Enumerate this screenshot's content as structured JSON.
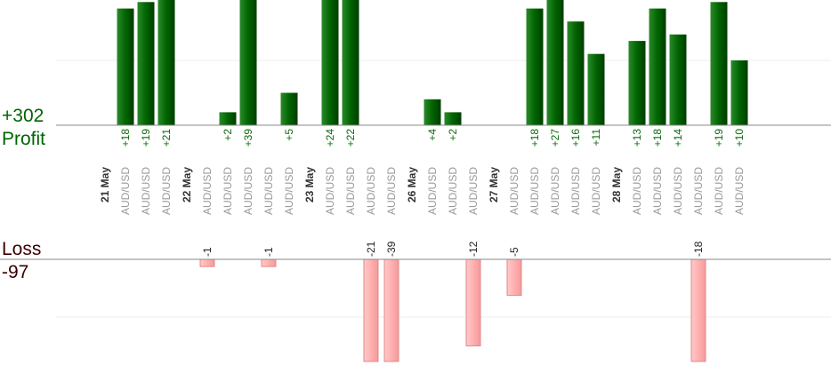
{
  "chart_data": {
    "type": "bar",
    "totals": {
      "profit_value": "+302",
      "profit_label": "Profit",
      "loss_label": "Loss",
      "loss_value": "-97"
    },
    "colors": {
      "profit_bar": "#006400",
      "loss_bar": "#ffb6b6",
      "axis": "#888888"
    },
    "categories": [
      "21 May",
      "AUD/USD",
      "AUD/USD",
      "AUD/USD",
      "22 May",
      "AUD/USD",
      "AUD/USD",
      "AUD/USD",
      "AUD/USD",
      "AUD/USD",
      "23 May",
      "AUD/USD",
      "AUD/USD",
      "AUD/USD",
      "AUD/USD",
      "26 May",
      "AUD/USD",
      "AUD/USD",
      "AUD/USD",
      "27 May",
      "AUD/USD",
      "AUD/USD",
      "AUD/USD",
      "AUD/USD",
      "AUD/USD",
      "28 May",
      "AUD/USD",
      "AUD/USD",
      "AUD/USD",
      "AUD/USD",
      "AUD/USD",
      "AUD/USD"
    ],
    "is_day_header": [
      true,
      false,
      false,
      false,
      true,
      false,
      false,
      false,
      false,
      false,
      true,
      false,
      false,
      false,
      false,
      true,
      false,
      false,
      false,
      true,
      false,
      false,
      false,
      false,
      false,
      true,
      false,
      false,
      false,
      false,
      false,
      false
    ],
    "profit_values": [
      null,
      18,
      19,
      21,
      null,
      null,
      2,
      39,
      null,
      5,
      null,
      24,
      22,
      null,
      null,
      null,
      4,
      2,
      null,
      null,
      null,
      18,
      27,
      16,
      11,
      null,
      13,
      18,
      14,
      null,
      19,
      10
    ],
    "profit_labels": [
      "",
      "+18",
      "+19",
      "+21",
      "",
      "",
      "+2",
      "+39",
      "",
      "+5",
      "",
      "+24",
      "+22",
      "",
      "",
      "",
      "+4",
      "+2",
      "",
      "",
      "",
      "+18",
      "+27",
      "+16",
      "+11",
      "",
      "+13",
      "+18",
      "+14",
      "",
      "+19",
      "+10"
    ],
    "loss_values": [
      null,
      null,
      null,
      null,
      null,
      -1,
      null,
      null,
      -1,
      null,
      null,
      null,
      null,
      -21,
      -39,
      null,
      null,
      null,
      -12,
      null,
      -5,
      null,
      null,
      null,
      null,
      null,
      null,
      null,
      null,
      -18,
      null,
      null
    ],
    "loss_labels": [
      "",
      "",
      "",
      "",
      "",
      "-1",
      "",
      "",
      "-1",
      "",
      "",
      "",
      "",
      "-21",
      "-39",
      "",
      "",
      "",
      "-12",
      "",
      "-5",
      "",
      "",
      "",
      "",
      "",
      "",
      "",
      "",
      "-18",
      "",
      ""
    ],
    "profit_axis_max": 20,
    "loss_axis_min": -16
  }
}
